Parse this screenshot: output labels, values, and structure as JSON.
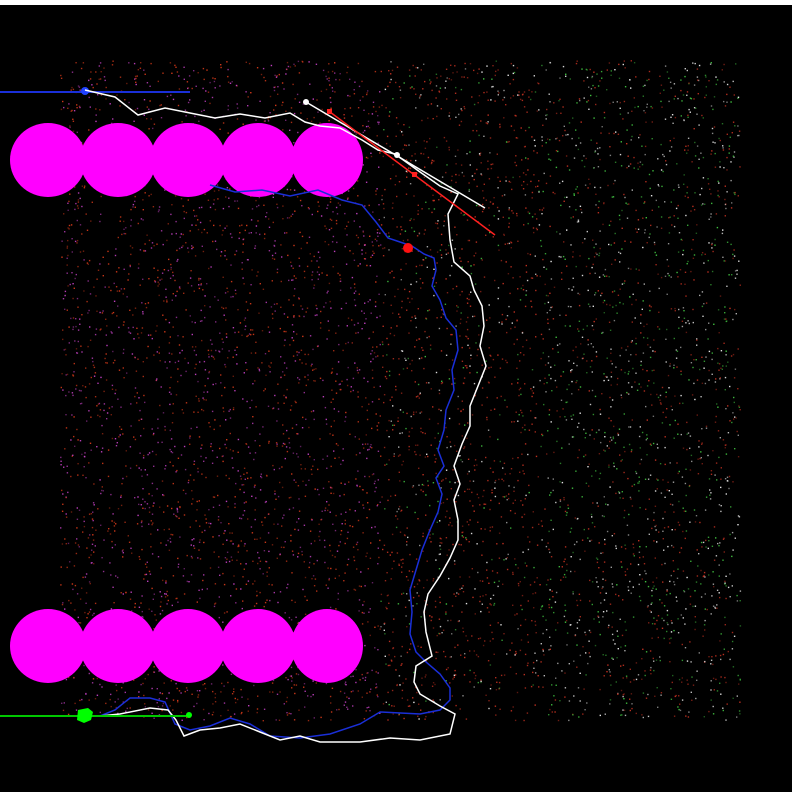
{
  "scene": {
    "colors": {
      "background": "#000000",
      "frame_strip": "#ffffff",
      "blob": "#ff00ff",
      "particle_left": "#c040c0",
      "particle_center": "#d03818",
      "particle_right_red": "#c03020",
      "particle_right_green": "#40c040",
      "particle_white": "#e8e8e8",
      "trail_blue": "#1a2fd8",
      "trail_white": "#ffffff",
      "line_red": "#ff2020",
      "green_line": "#00c800",
      "green_marker": "#00ff00",
      "blue_marker": "#2040ff",
      "red_marker": "#ff1010"
    },
    "blob_rows": {
      "top_count": 5,
      "bottom_count": 5
    },
    "icons": {
      "blue_anchor": "blue-dot-icon",
      "green_anchor": "green-blob-icon",
      "red_marker": "red-dot-icon"
    }
  }
}
